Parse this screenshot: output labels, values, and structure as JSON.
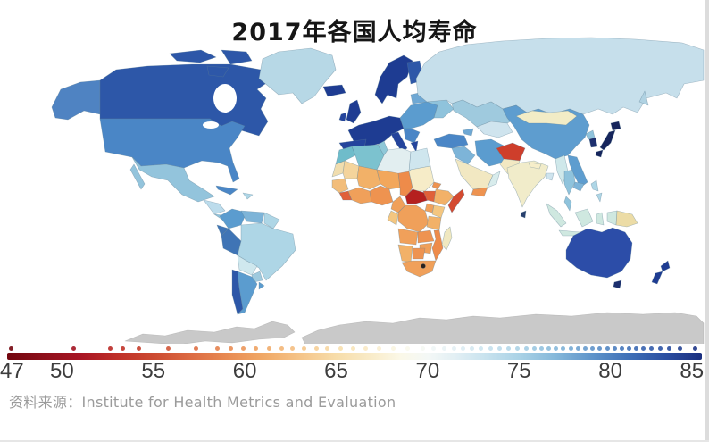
{
  "title": "2017年各国人均寿命",
  "source": "资料来源：Institute for Health Metrics and Evaluation",
  "chart_data": {
    "type": "heatmap",
    "variant": "world-choropleth-map",
    "title": "2017年各国人均寿命",
    "legend_position": "bottom",
    "colorbar": {
      "min": 47,
      "max": 85,
      "ticks": [
        47,
        50,
        55,
        60,
        65,
        70,
        75,
        80,
        85
      ],
      "stops": [
        {
          "v": 47,
          "c": "#72060f"
        },
        {
          "v": 49,
          "c": "#8e101b"
        },
        {
          "v": 51,
          "c": "#a81524"
        },
        {
          "v": 53,
          "c": "#bf2f28"
        },
        {
          "v": 55,
          "c": "#cc4a31"
        },
        {
          "v": 57,
          "c": "#dc6a42"
        },
        {
          "v": 59,
          "c": "#e88a52"
        },
        {
          "v": 61,
          "c": "#f0a866"
        },
        {
          "v": 63,
          "c": "#f5c488"
        },
        {
          "v": 65,
          "c": "#f7ddaa"
        },
        {
          "v": 67,
          "c": "#f9ecca"
        },
        {
          "v": 68.5,
          "c": "#fbf8e8"
        },
        {
          "v": 70,
          "c": "#f4f8f6"
        },
        {
          "v": 71.5,
          "c": "#e2eff4"
        },
        {
          "v": 73,
          "c": "#cbe4ef"
        },
        {
          "v": 75,
          "c": "#aad2e6"
        },
        {
          "v": 77,
          "c": "#85b8da"
        },
        {
          "v": 79,
          "c": "#5f94ca"
        },
        {
          "v": 81,
          "c": "#3f70b7"
        },
        {
          "v": 83,
          "c": "#2b4fa2"
        },
        {
          "v": 85,
          "c": "#1b2f80"
        }
      ]
    },
    "scale_dots": [
      47.2,
      50.6,
      52.6,
      53.3,
      54.2,
      55.8,
      57.3,
      58.5,
      59.2,
      59.9,
      60.6,
      61.3,
      62.0,
      62.6,
      63.2,
      63.9,
      64.5,
      65.2,
      65.9,
      66.6,
      67.3,
      68.1,
      68.9,
      69.7,
      70.3,
      70.9,
      71.4,
      71.9,
      72.4,
      72.9,
      73.4,
      73.9,
      74.4,
      74.9,
      75.4,
      75.8,
      76.2,
      76.6,
      77.0,
      77.4,
      77.8,
      78.2,
      78.6,
      79.0,
      79.4,
      79.8,
      80.2,
      80.6,
      81.0,
      81.4,
      81.8,
      82.2,
      82.7,
      83.2,
      83.8,
      84.6
    ],
    "regions": [
      {
        "id": "alaska",
        "label": "Alaska (USA)",
        "v": 78.5,
        "c": "#4f83c2"
      },
      {
        "id": "canada",
        "label": "Canada",
        "v": 82.0,
        "c": "#2d57a8"
      },
      {
        "id": "arctic-islands-1",
        "label": "Canadian Arctic",
        "v": 82.0,
        "c": "#2d57a8"
      },
      {
        "id": "arctic-islands-2",
        "label": "Canadian Arctic",
        "v": 82.0,
        "c": "#2d57a8"
      },
      {
        "id": "arctic-islands-3",
        "label": "Canadian Arctic",
        "v": 82.0,
        "c": "#2d57a8"
      },
      {
        "id": "greenland",
        "label": "Greenland",
        "v": 71.5,
        "c": "#b7d8e6"
      },
      {
        "id": "usa",
        "label": "United States",
        "v": 78.9,
        "c": "#4a86c6"
      },
      {
        "id": "mexico",
        "label": "Mexico",
        "v": 75.0,
        "c": "#93c4dc"
      },
      {
        "id": "baja",
        "label": "Baja California",
        "v": 75.0,
        "c": "#93c4dc"
      },
      {
        "id": "central-america",
        "label": "Central America",
        "v": 73.5,
        "c": "#bcdcec"
      },
      {
        "id": "panama",
        "label": "Panama / Costa Rica",
        "v": 77.5,
        "c": "#8fc3dc"
      },
      {
        "id": "cuba",
        "label": "Cuba",
        "v": 78.7,
        "c": "#4a86c6"
      },
      {
        "id": "hispaniola",
        "label": "Hispaniola",
        "v": 74.0,
        "c": "#aed6e6"
      },
      {
        "id": "colombia",
        "label": "Colombia",
        "v": 76.9,
        "c": "#5b9ccf"
      },
      {
        "id": "venezuela",
        "label": "Venezuela",
        "v": 75.5,
        "c": "#7db4d8"
      },
      {
        "id": "guyanas",
        "label": "Guyanas",
        "v": 70.5,
        "c": "#aed6e6"
      },
      {
        "id": "ecuador",
        "label": "Ecuador",
        "v": 79.5,
        "c": "#3f74b5"
      },
      {
        "id": "peru",
        "label": "Peru",
        "v": 79.4,
        "c": "#3f74b5"
      },
      {
        "id": "brazil",
        "label": "Brazil",
        "v": 75.5,
        "c": "#aed6e6"
      },
      {
        "id": "bolivia",
        "label": "Bolivia",
        "v": 71.5,
        "c": "#cfe8ee"
      },
      {
        "id": "paraguay",
        "label": "Paraguay",
        "v": 74.5,
        "c": "#9fcade"
      },
      {
        "id": "chile",
        "label": "Chile",
        "v": 81.8,
        "c": "#2d57a8"
      },
      {
        "id": "argentina",
        "label": "Argentina",
        "v": 76.5,
        "c": "#5b9ccf"
      },
      {
        "id": "uruguay",
        "label": "Uruguay",
        "v": 77.5,
        "c": "#5b9ccf"
      },
      {
        "id": "iceland",
        "label": "Iceland",
        "v": 82.9,
        "c": "#1e3c92"
      },
      {
        "id": "uk",
        "label": "United Kingdom",
        "v": 81.4,
        "c": "#1e3c92"
      },
      {
        "id": "ireland",
        "label": "Ireland",
        "v": 81.5,
        "c": "#24449c"
      },
      {
        "id": "scandinavia",
        "label": "Norway / Sweden",
        "v": 82.3,
        "c": "#1e3c92"
      },
      {
        "id": "finland",
        "label": "Finland",
        "v": 81.7,
        "c": "#2d57a8"
      },
      {
        "id": "baltics-belarus",
        "label": "Baltics / Belarus",
        "v": 75.5,
        "c": "#6fa8d4"
      },
      {
        "id": "west-europe",
        "label": "Western Europe",
        "v": 82.5,
        "c": "#1e3c92"
      },
      {
        "id": "iberia",
        "label": "Spain / Portugal",
        "v": 83.0,
        "c": "#24449c"
      },
      {
        "id": "italy",
        "label": "Italy",
        "v": 83.1,
        "c": "#24449c"
      },
      {
        "id": "east-europe",
        "label": "Eastern Europe",
        "v": 77.5,
        "c": "#5b9ccf"
      },
      {
        "id": "balkans",
        "label": "Balkans",
        "v": 78.0,
        "c": "#4a86c6"
      },
      {
        "id": "greece",
        "label": "Greece",
        "v": 81.5,
        "c": "#24449c"
      },
      {
        "id": "ukraine",
        "label": "Ukraine",
        "v": 72.0,
        "c": "#8fc3dc"
      },
      {
        "id": "russia",
        "label": "Russia",
        "v": 71.5,
        "c": "#c6dfeb"
      },
      {
        "id": "sakhalin",
        "label": "Sakhalin",
        "v": 71.5,
        "c": "#b0d2e2"
      },
      {
        "id": "kazakhstan",
        "label": "Kazakhstan",
        "v": 72.8,
        "c": "#9fcade"
      },
      {
        "id": "central-asia",
        "label": "Central Asia",
        "v": 71.0,
        "c": "#cfe4ee"
      },
      {
        "id": "turkey",
        "label": "Turkey",
        "v": 78.0,
        "c": "#4a86c6"
      },
      {
        "id": "caucasus",
        "label": "Caucasus",
        "v": 76.0,
        "c": "#6fa8d4"
      },
      {
        "id": "syria-iraq",
        "label": "Syria / Iraq",
        "v": 75.0,
        "c": "#7db4d8"
      },
      {
        "id": "iran",
        "label": "Iran",
        "v": 76.5,
        "c": "#5b9ccf"
      },
      {
        "id": "saudi-arabia",
        "label": "Saudi Arabia",
        "v": 66.5,
        "c": "#f2e8c2"
      },
      {
        "id": "yemen",
        "label": "Yemen",
        "v": 62.0,
        "c": "#ee9350"
      },
      {
        "id": "oman",
        "label": "Oman",
        "v": 71.0,
        "c": "#d8ecec"
      },
      {
        "id": "afghanistan",
        "label": "Afghanistan",
        "v": 53.5,
        "c": "#ce3e2b"
      },
      {
        "id": "pakistan",
        "label": "Pakistan",
        "v": 66.5,
        "c": "#f2e8c2"
      },
      {
        "id": "india",
        "label": "India",
        "v": 66.2,
        "c": "#f1ecca"
      },
      {
        "id": "nepal",
        "label": "Nepal",
        "v": 66.0,
        "c": "#f6eeca"
      },
      {
        "id": "bangladesh",
        "label": "Bangladesh",
        "v": 71.0,
        "c": "#cfe4ee"
      },
      {
        "id": "sri-lanka",
        "label": "Sri Lanka",
        "v": 80.0,
        "c": "#27406e"
      },
      {
        "id": "china",
        "label": "China",
        "v": 76.7,
        "c": "#5e9dcf"
      },
      {
        "id": "mongolia",
        "label": "Mongolia",
        "v": 65.5,
        "c": "#f2ecc6"
      },
      {
        "id": "north-korea",
        "label": "North Korea",
        "v": 72.0,
        "c": "#8fc3dc"
      },
      {
        "id": "south-korea",
        "label": "South Korea",
        "v": 82.5,
        "c": "#1c2f6e"
      },
      {
        "id": "japan-hokkaido",
        "label": "Japan",
        "v": 84.6,
        "c": "#16255c"
      },
      {
        "id": "japan-honshu",
        "label": "Japan",
        "v": 84.6,
        "c": "#16255c"
      },
      {
        "id": "japan-kyushu",
        "label": "Japan",
        "v": 84.6,
        "c": "#16255c"
      },
      {
        "id": "myanmar",
        "label": "Myanmar",
        "v": 70.5,
        "c": "#cfe8ea"
      },
      {
        "id": "thailand",
        "label": "Thailand",
        "v": 74.5,
        "c": "#8fc3dc"
      },
      {
        "id": "laos-vietnam",
        "label": "Vietnam / Laos",
        "v": 76.0,
        "c": "#5e9dcf"
      },
      {
        "id": "cambodia",
        "label": "Cambodia",
        "v": 72.0,
        "c": "#7db4d8"
      },
      {
        "id": "malay-peninsula",
        "label": "Malaysia",
        "v": 74.0,
        "c": "#8fc3dc"
      },
      {
        "id": "sumatra",
        "label": "Indonesia (Sumatra)",
        "v": 71.5,
        "c": "#cfe8e0"
      },
      {
        "id": "borneo",
        "label": "Indonesia (Borneo)",
        "v": 71.5,
        "c": "#cfe8e0"
      },
      {
        "id": "sulawesi",
        "label": "Indonesia (Sulawesi)",
        "v": 71.5,
        "c": "#cfe8e0"
      },
      {
        "id": "java",
        "label": "Indonesia (Java)",
        "v": 71.5,
        "c": "#cfe8e0"
      },
      {
        "id": "philippines-n",
        "label": "Philippines",
        "v": 70.5,
        "c": "#aed6e6"
      },
      {
        "id": "philippines-s",
        "label": "Philippines",
        "v": 70.5,
        "c": "#aed6e6"
      },
      {
        "id": "west-newguinea",
        "label": "West New Guinea",
        "v": 71.5,
        "c": "#cfe8e0"
      },
      {
        "id": "png",
        "label": "Papua New Guinea",
        "v": 65.5,
        "c": "#ecdca6"
      },
      {
        "id": "australia",
        "label": "Australia",
        "v": 82.9,
        "c": "#2c4da8"
      },
      {
        "id": "tasmania",
        "label": "Tasmania",
        "v": 82.9,
        "c": "#1c2f6e"
      },
      {
        "id": "nz-north",
        "label": "New Zealand",
        "v": 82.2,
        "c": "#1e3c92"
      },
      {
        "id": "nz-south",
        "label": "New Zealand",
        "v": 82.2,
        "c": "#1e3c92"
      },
      {
        "id": "morocco",
        "label": "Morocco",
        "v": 75.5,
        "c": "#6fbcca"
      },
      {
        "id": "algeria",
        "label": "Algeria",
        "v": 76.5,
        "c": "#7cc2cf"
      },
      {
        "id": "tunisia",
        "label": "Tunisia",
        "v": 76.0,
        "c": "#8fc8d8"
      },
      {
        "id": "libya",
        "label": "Libya",
        "v": 72.5,
        "c": "#e2eef0"
      },
      {
        "id": "egypt",
        "label": "Egypt",
        "v": 71.5,
        "c": "#cfe6ee"
      },
      {
        "id": "western-sahara",
        "label": "Western Sahara",
        "v": 67.0,
        "c": "#f0ddae"
      },
      {
        "id": "mauritania",
        "label": "Mauritania",
        "v": 64.5,
        "c": "#f4d49c"
      },
      {
        "id": "mali",
        "label": "Mali",
        "v": 60.5,
        "c": "#f2b168"
      },
      {
        "id": "niger",
        "label": "Niger",
        "v": 60.0,
        "c": "#f2a75c"
      },
      {
        "id": "chad",
        "label": "Chad",
        "v": 57.0,
        "c": "#ee8b4a"
      },
      {
        "id": "sudan",
        "label": "Sudan",
        "v": 67.5,
        "c": "#f6ecc8"
      },
      {
        "id": "eritrea",
        "label": "Eritrea / Djibouti",
        "v": 62.0,
        "c": "#ee9350"
      },
      {
        "id": "senegal-region",
        "label": "Senegal / Guinea",
        "v": 61.5,
        "c": "#f2bd7a"
      },
      {
        "id": "sierra-leone",
        "label": "Sierra Leone / Liberia",
        "v": 55.5,
        "c": "#e0603a"
      },
      {
        "id": "ghana-region",
        "label": "Côte d'Ivoire / Ghana",
        "v": 59.5,
        "c": "#f0a05a"
      },
      {
        "id": "nigeria",
        "label": "Nigeria",
        "v": 58.5,
        "c": "#ee9350"
      },
      {
        "id": "cameroon",
        "label": "Cameroon",
        "v": 59.5,
        "c": "#f0a05a"
      },
      {
        "id": "car",
        "label": "Central African Republic",
        "v": 50.5,
        "c": "#b5201f"
      },
      {
        "id": "south-sudan",
        "label": "South Sudan",
        "v": 56.0,
        "c": "#e0603a"
      },
      {
        "id": "ethiopia",
        "label": "Ethiopia",
        "v": 61.0,
        "c": "#f2b168"
      },
      {
        "id": "somalia",
        "label": "Somalia",
        "v": 54.5,
        "c": "#d44a30"
      },
      {
        "id": "kenya",
        "label": "Kenya",
        "v": 62.5,
        "c": "#f4c680"
      },
      {
        "id": "uganda",
        "label": "Uganda",
        "v": 60.0,
        "c": "#f0a05a"
      },
      {
        "id": "drc",
        "label": "DR Congo",
        "v": 59.5,
        "c": "#f0a05a"
      },
      {
        "id": "congo-gabon",
        "label": "Congo / Gabon",
        "v": 62.5,
        "c": "#f4c680"
      },
      {
        "id": "tanzania",
        "label": "Tanzania",
        "v": 61.0,
        "c": "#f2b168"
      },
      {
        "id": "angola",
        "label": "Angola",
        "v": 59.5,
        "c": "#f0a05a"
      },
      {
        "id": "zambia",
        "label": "Zambia",
        "v": 58.5,
        "c": "#ee9350"
      },
      {
        "id": "mozambique",
        "label": "Mozambique",
        "v": 57.0,
        "c": "#ee8b4a"
      },
      {
        "id": "zimbabwe",
        "label": "Zimbabwe",
        "v": 59.5,
        "c": "#f0a05a"
      },
      {
        "id": "namibia",
        "label": "Namibia",
        "v": 60.5,
        "c": "#f2b168"
      },
      {
        "id": "botswana",
        "label": "Botswana",
        "v": 58.5,
        "c": "#ee9350"
      },
      {
        "id": "south-africa",
        "label": "South Africa",
        "v": 59.5,
        "c": "#f0a05a"
      },
      {
        "id": "lesotho",
        "label": "Lesotho",
        "v": 48.0,
        "c": "#2a211c"
      },
      {
        "id": "madagascar",
        "label": "Madagascar",
        "v": 65.5,
        "c": "#f0e8c0"
      },
      {
        "id": "antarctica-west",
        "label": "Antarctica (no data)",
        "v": null,
        "c": "#c9c9c9"
      },
      {
        "id": "antarctica-east",
        "label": "Antarctica (no data)",
        "v": null,
        "c": "#c9c9c9"
      }
    ],
    "source": "资料来源：Institute for Health Metrics and Evaluation"
  }
}
